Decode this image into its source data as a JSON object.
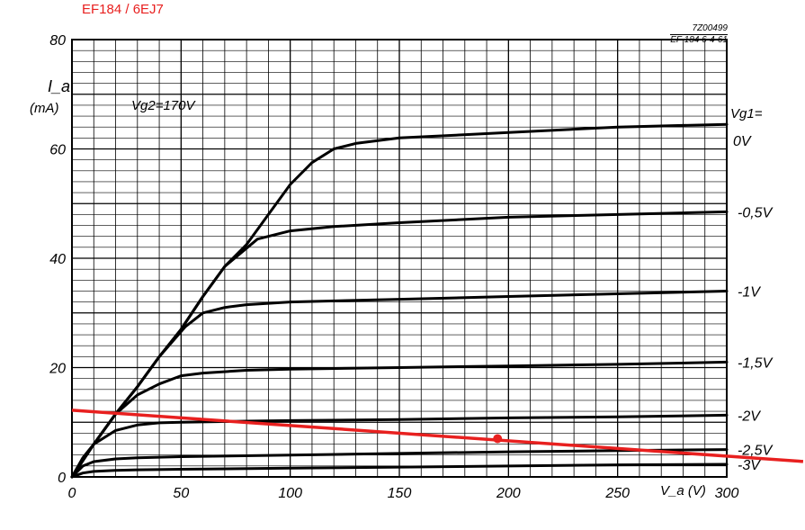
{
  "header": {
    "title": "EF184 / 6EJ7",
    "ref_code": "7Z00499",
    "ref_date": "EF 184   6-4-61"
  },
  "colors": {
    "curves": "#000000",
    "grid": "#000000",
    "title": "#e8201f",
    "load_line": "#e8201f"
  },
  "chart_data": {
    "type": "line",
    "xlabel": "V_a (V)",
    "ylabel_top": "I_a",
    "ylabel_unit": "(mA)",
    "xlim": [
      0,
      300
    ],
    "ylim": [
      0,
      80
    ],
    "x_ticks": [
      "0",
      "50",
      "100",
      "150",
      "200",
      "250",
      "300"
    ],
    "y_ticks": [
      "0",
      "20",
      "40",
      "60",
      "80"
    ],
    "grid": true,
    "annotation": "Vg2=170V",
    "legend_header": "Vg1=",
    "series": [
      {
        "name": "0V",
        "x": [
          0,
          10,
          20,
          30,
          40,
          50,
          60,
          70,
          80,
          90,
          100,
          110,
          120,
          130,
          150,
          200,
          250,
          300
        ],
        "y": [
          0,
          6,
          11.5,
          16.5,
          22,
          27,
          33,
          38.5,
          42.5,
          48,
          53.5,
          57.5,
          60,
          61,
          62,
          63,
          64,
          64.5
        ]
      },
      {
        "name": "-0,5V",
        "x": [
          0,
          10,
          20,
          30,
          40,
          50,
          60,
          70,
          85,
          100,
          120,
          150,
          200,
          250,
          300
        ],
        "y": [
          0,
          6,
          11.5,
          16.5,
          22,
          27,
          33,
          38.5,
          43.5,
          45,
          45.8,
          46.5,
          47.5,
          48,
          48.5
        ]
      },
      {
        "name": "-1V",
        "x": [
          0,
          10,
          20,
          30,
          40,
          52,
          60,
          70,
          80,
          100,
          150,
          200,
          250,
          300
        ],
        "y": [
          0,
          6,
          11.5,
          16.5,
          22,
          27.5,
          30,
          31,
          31.5,
          32,
          32.5,
          33,
          33.5,
          34
        ]
      },
      {
        "name": "-1,5V",
        "x": [
          0,
          10,
          20,
          30,
          40,
          50,
          60,
          80,
          100,
          150,
          200,
          250,
          300
        ],
        "y": [
          0,
          6,
          11.5,
          15,
          17,
          18.5,
          19,
          19.5,
          19.7,
          20,
          20.3,
          20.6,
          21
        ]
      },
      {
        "name": "-2V",
        "x": [
          0,
          5,
          10,
          20,
          30,
          40,
          50,
          80,
          100,
          150,
          200,
          250,
          300
        ],
        "y": [
          0,
          3.5,
          6,
          8.5,
          9.5,
          9.9,
          10,
          10.2,
          10.3,
          10.5,
          10.8,
          11,
          11.3
        ]
      },
      {
        "name": "-2,5V",
        "x": [
          0,
          5,
          10,
          20,
          30,
          40,
          50,
          100,
          150,
          200,
          250,
          300
        ],
        "y": [
          0,
          2,
          2.8,
          3.3,
          3.5,
          3.6,
          3.7,
          4,
          4.3,
          4.6,
          4.8,
          5
        ]
      },
      {
        "name": "-3V",
        "x": [
          0,
          5,
          10,
          20,
          30,
          50,
          100,
          150,
          200,
          250,
          300
        ],
        "y": [
          0,
          0.7,
          1,
          1.2,
          1.3,
          1.4,
          1.6,
          1.8,
          2,
          2.2,
          2.3
        ]
      }
    ],
    "load_line": {
      "x": [
        0,
        300
      ],
      "y": [
        12.2,
        3.8
      ],
      "operating_point": {
        "x": 195,
        "y": 7
      }
    }
  }
}
